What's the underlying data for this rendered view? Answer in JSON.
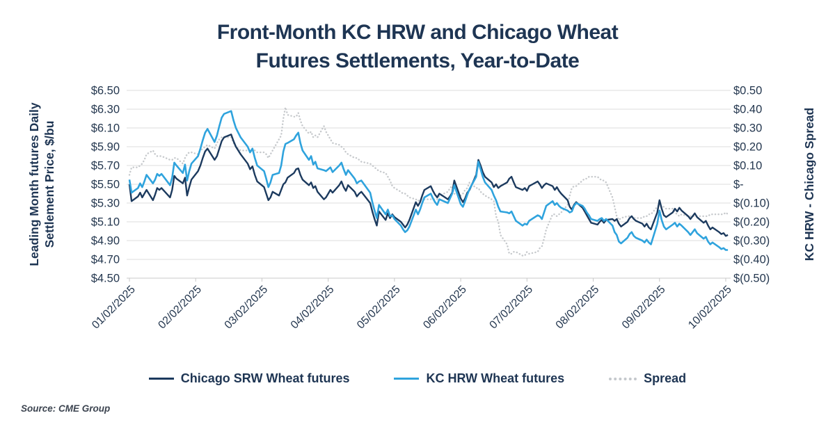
{
  "title": {
    "line1": "Front-Month KC HRW and Chicago Wheat",
    "line2": "Futures Settlements, Year-to-Date"
  },
  "left_axis_title": {
    "line1": "Leading Month futures Daily",
    "line2": "Settlement Price, $/bu"
  },
  "right_axis_title": "KC HRW - Chicago Spread",
  "source": "Source: CME Group",
  "legend": [
    {
      "label": "Chicago SRW Wheat futures",
      "color": "#1c3a5e",
      "style": "solid"
    },
    {
      "label": "KC HRW Wheat futures",
      "color": "#2fa3dd",
      "style": "solid"
    },
    {
      "label": "Spread",
      "color": "#c4c8cc",
      "style": "dotted"
    }
  ],
  "colors": {
    "chicago_srw": "#1c3a5e",
    "kc_hrw": "#2fa3dd",
    "spread": "#c6c9cc",
    "gridline": "#dcdcdc",
    "axis_line": "#c8c8c8",
    "text": "#24374f"
  },
  "chart_data": {
    "type": "line",
    "title": "Front-Month KC HRW and Chicago Wheat Futures Settlements, Year-to-Date",
    "xlabel": "",
    "ylabel_left": "Leading Month futures Daily Settlement Price, $/bu",
    "ylabel_right": "KC HRW - Chicago Spread",
    "grid": true,
    "legend_position": "bottom",
    "ylim_price": [
      4.5,
      6.5
    ],
    "ylim_spread": [
      -0.5,
      0.5
    ],
    "y_ticks_left": [
      "$6.50",
      "$6.30",
      "$6.10",
      "$5.90",
      "$5.70",
      "$5.50",
      "$5.30",
      "$5.10",
      "$4.90",
      "$4.70",
      "$4.50"
    ],
    "y_ticks_right": [
      "$0.50",
      "$0.40",
      "$0.30",
      "$0.20",
      "$0.10",
      "$-",
      "$(0.10)",
      "$(0.20)",
      "$(0.30)",
      "$(0.40)",
      "$(0.50)"
    ],
    "x_ticks": [
      "01/02/2025",
      "02/02/2025",
      "03/02/2025",
      "04/02/2025",
      "05/02/2025",
      "06/02/2025",
      "07/02/2025",
      "08/02/2025",
      "09/02/2025",
      "10/02/2025"
    ],
    "dates": [
      "1/2",
      "1/3",
      "1/6",
      "1/7",
      "1/8",
      "1/9",
      "1/10",
      "1/13",
      "1/14",
      "1/15",
      "1/16",
      "1/17",
      "1/21",
      "1/22",
      "1/23",
      "1/24",
      "1/27",
      "1/28",
      "1/29",
      "1/30",
      "1/31",
      "2/3",
      "2/4",
      "2/5",
      "2/6",
      "2/7",
      "2/10",
      "2/11",
      "2/12",
      "2/13",
      "2/14",
      "2/17",
      "2/18",
      "2/19",
      "2/20",
      "2/21",
      "2/24",
      "2/25",
      "2/26",
      "2/27",
      "2/28",
      "3/3",
      "3/4",
      "3/5",
      "3/6",
      "3/7",
      "3/10",
      "3/11",
      "3/12",
      "3/13",
      "3/14",
      "3/17",
      "3/18",
      "3/19",
      "3/20",
      "3/21",
      "3/24",
      "3/25",
      "3/26",
      "3/27",
      "3/28",
      "3/31",
      "4/1",
      "4/2",
      "4/3",
      "4/4",
      "4/7",
      "4/8",
      "4/9",
      "4/10",
      "4/11",
      "4/14",
      "4/15",
      "4/16",
      "4/17",
      "4/21",
      "4/22",
      "4/23",
      "4/24",
      "4/25",
      "4/28",
      "4/29",
      "4/30",
      "5/1",
      "5/2",
      "5/5",
      "5/6",
      "5/7",
      "5/8",
      "5/9",
      "5/12",
      "5/13",
      "5/14",
      "5/15",
      "5/16",
      "5/19",
      "5/20",
      "5/21",
      "5/22",
      "5/23",
      "5/27",
      "5/28",
      "5/29",
      "5/30",
      "6/2",
      "6/3",
      "6/4",
      "6/5",
      "6/6",
      "6/9",
      "6/10",
      "6/11",
      "6/12",
      "6/13",
      "6/16",
      "6/17",
      "6/18",
      "6/19",
      "6/20",
      "6/23",
      "6/24",
      "6/25",
      "6/26",
      "6/27",
      "6/30",
      "7/1",
      "7/2",
      "7/3",
      "7/7",
      "7/8",
      "7/9",
      "7/10",
      "7/11",
      "7/14",
      "7/15",
      "7/16",
      "7/17",
      "7/18",
      "7/21",
      "7/22",
      "7/23",
      "7/24",
      "7/25",
      "7/28",
      "7/29",
      "7/30",
      "7/31",
      "8/1",
      "8/4",
      "8/5",
      "8/6",
      "8/7",
      "8/8",
      "8/11",
      "8/12",
      "8/13",
      "8/14",
      "8/15",
      "8/18",
      "8/19",
      "8/20",
      "8/21",
      "8/22",
      "8/25",
      "8/26",
      "8/27",
      "8/28",
      "8/29",
      "9/1",
      "9/2",
      "9/3",
      "9/4",
      "9/5",
      "9/8",
      "9/9",
      "9/10",
      "9/11",
      "9/12",
      "9/15",
      "9/16",
      "9/17",
      "9/18",
      "9/19",
      "9/22",
      "9/23",
      "9/24",
      "9/25",
      "9/26",
      "9/29",
      "9/30",
      "10/1",
      "10/2",
      "10/3"
    ],
    "series": [
      {
        "name": "Chicago SRW Wheat futures",
        "axis": "left",
        "values": [
          5.5,
          5.32,
          5.37,
          5.41,
          5.36,
          5.4,
          5.44,
          5.33,
          5.39,
          5.46,
          5.44,
          5.46,
          5.36,
          5.44,
          5.59,
          5.56,
          5.51,
          5.57,
          5.38,
          5.47,
          5.55,
          5.64,
          5.7,
          5.78,
          5.85,
          5.88,
          5.76,
          5.8,
          5.88,
          5.96,
          6.0,
          6.03,
          5.96,
          5.9,
          5.86,
          5.82,
          5.72,
          5.66,
          5.69,
          5.6,
          5.53,
          5.47,
          5.4,
          5.33,
          5.36,
          5.42,
          5.38,
          5.44,
          5.5,
          5.52,
          5.57,
          5.62,
          5.66,
          5.67,
          5.6,
          5.55,
          5.49,
          5.52,
          5.46,
          5.48,
          5.42,
          5.34,
          5.36,
          5.4,
          5.44,
          5.41,
          5.49,
          5.53,
          5.47,
          5.43,
          5.49,
          5.42,
          5.37,
          5.4,
          5.42,
          5.3,
          5.21,
          5.13,
          5.06,
          5.21,
          5.12,
          5.19,
          5.14,
          5.18,
          5.15,
          5.1,
          5.07,
          5.04,
          5.07,
          5.12,
          5.31,
          5.27,
          5.31,
          5.38,
          5.44,
          5.48,
          5.43,
          5.39,
          5.36,
          5.4,
          5.34,
          5.37,
          5.41,
          5.54,
          5.35,
          5.31,
          5.35,
          5.41,
          5.44,
          5.6,
          5.76,
          5.7,
          5.63,
          5.58,
          5.52,
          5.47,
          5.5,
          5.46,
          5.48,
          5.52,
          5.56,
          5.58,
          5.52,
          5.47,
          5.44,
          5.46,
          5.43,
          5.48,
          5.53,
          5.5,
          5.46,
          5.49,
          5.51,
          5.48,
          5.44,
          5.47,
          5.43,
          5.4,
          5.33,
          5.26,
          5.23,
          5.28,
          5.31,
          5.25,
          5.21,
          5.17,
          5.13,
          5.09,
          5.07,
          5.1,
          5.12,
          5.09,
          5.12,
          5.13,
          5.11,
          5.13,
          5.08,
          5.05,
          5.1,
          5.14,
          5.16,
          5.13,
          5.11,
          5.08,
          5.05,
          5.08,
          5.04,
          5.02,
          5.2,
          5.33,
          5.24,
          5.17,
          5.15,
          5.2,
          5.24,
          5.21,
          5.25,
          5.22,
          5.16,
          5.13,
          5.16,
          5.19,
          5.15,
          5.09,
          5.11,
          5.06,
          5.02,
          5.04,
          4.99,
          4.97,
          4.98,
          4.95,
          4.96
        ]
      },
      {
        "name": "KC HRW Wheat futures",
        "axis": "left",
        "values": [
          5.55,
          5.41,
          5.46,
          5.51,
          5.47,
          5.53,
          5.6,
          5.51,
          5.55,
          5.61,
          5.59,
          5.61,
          5.49,
          5.57,
          5.73,
          5.7,
          5.62,
          5.71,
          5.54,
          5.64,
          5.72,
          5.8,
          5.88,
          5.97,
          6.05,
          6.09,
          5.95,
          6.02,
          6.12,
          6.21,
          6.25,
          6.28,
          6.18,
          6.1,
          6.05,
          6.0,
          5.9,
          5.84,
          5.88,
          5.78,
          5.7,
          5.64,
          5.56,
          5.47,
          5.52,
          5.6,
          5.62,
          5.7,
          5.85,
          5.93,
          5.94,
          5.98,
          6.02,
          6.05,
          5.94,
          5.86,
          5.76,
          5.8,
          5.71,
          5.74,
          5.67,
          5.65,
          5.64,
          5.66,
          5.68,
          5.63,
          5.7,
          5.73,
          5.66,
          5.6,
          5.65,
          5.56,
          5.51,
          5.53,
          5.54,
          5.41,
          5.31,
          5.22,
          5.14,
          5.28,
          5.18,
          5.23,
          5.16,
          5.17,
          5.13,
          5.06,
          5.02,
          4.99,
          5.01,
          5.05,
          5.23,
          5.18,
          5.23,
          5.3,
          5.36,
          5.4,
          5.35,
          5.31,
          5.28,
          5.34,
          5.3,
          5.35,
          5.4,
          5.49,
          5.29,
          5.26,
          5.32,
          5.39,
          5.45,
          5.58,
          5.74,
          5.66,
          5.58,
          5.52,
          5.44,
          5.38,
          5.33,
          5.26,
          5.21,
          5.2,
          5.19,
          5.21,
          5.16,
          5.11,
          5.06,
          5.08,
          5.07,
          5.11,
          5.17,
          5.16,
          5.13,
          5.2,
          5.27,
          5.32,
          5.28,
          5.3,
          5.27,
          5.25,
          5.22,
          5.2,
          5.21,
          5.27,
          5.3,
          5.27,
          5.24,
          5.2,
          5.17,
          5.13,
          5.11,
          5.13,
          5.14,
          5.11,
          5.13,
          5.06,
          4.99,
          4.96,
          4.89,
          4.87,
          4.93,
          4.97,
          4.99,
          4.95,
          4.93,
          4.9,
          4.88,
          4.91,
          4.88,
          4.86,
          5.08,
          5.22,
          5.12,
          5.05,
          5.02,
          5.07,
          5.09,
          5.05,
          5.08,
          5.06,
          4.99,
          4.96,
          4.99,
          5.02,
          4.98,
          4.92,
          4.94,
          4.89,
          4.86,
          4.88,
          4.83,
          4.81,
          4.82,
          4.8,
          4.8
        ]
      },
      {
        "name": "Spread",
        "axis": "right",
        "values": [
          0.05,
          0.09,
          0.09,
          0.1,
          0.11,
          0.13,
          0.16,
          0.18,
          0.16,
          0.15,
          0.15,
          0.15,
          0.13,
          0.13,
          0.14,
          0.14,
          0.11,
          0.14,
          0.16,
          0.17,
          0.17,
          0.16,
          0.18,
          0.19,
          0.2,
          0.21,
          0.19,
          0.22,
          0.24,
          0.25,
          0.25,
          0.25,
          0.22,
          0.2,
          0.19,
          0.18,
          0.18,
          0.18,
          0.19,
          0.18,
          0.17,
          0.17,
          0.16,
          0.14,
          0.16,
          0.18,
          0.24,
          0.26,
          0.35,
          0.41,
          0.37,
          0.36,
          0.36,
          0.38,
          0.34,
          0.31,
          0.27,
          0.28,
          0.25,
          0.26,
          0.25,
          0.31,
          0.28,
          0.26,
          0.24,
          0.22,
          0.21,
          0.2,
          0.19,
          0.17,
          0.16,
          0.14,
          0.14,
          0.13,
          0.12,
          0.11,
          0.1,
          0.09,
          0.08,
          0.07,
          0.06,
          0.04,
          0.02,
          -0.01,
          -0.02,
          -0.04,
          -0.05,
          -0.05,
          -0.06,
          -0.07,
          -0.08,
          -0.09,
          -0.08,
          -0.08,
          -0.08,
          -0.08,
          -0.08,
          -0.08,
          -0.08,
          -0.06,
          -0.04,
          -0.02,
          -0.01,
          -0.05,
          -0.06,
          -0.05,
          -0.03,
          -0.02,
          0.01,
          -0.02,
          -0.02,
          -0.04,
          -0.05,
          -0.06,
          -0.08,
          -0.09,
          -0.17,
          -0.2,
          -0.27,
          -0.32,
          -0.37,
          -0.37,
          -0.36,
          -0.36,
          -0.38,
          -0.38,
          -0.36,
          -0.37,
          -0.36,
          -0.34,
          -0.33,
          -0.29,
          -0.24,
          -0.16,
          -0.16,
          -0.17,
          -0.16,
          -0.15,
          -0.11,
          -0.06,
          -0.02,
          -0.01,
          -0.01,
          0.02,
          0.03,
          0.03,
          0.04,
          0.04,
          0.04,
          0.03,
          0.02,
          0.02,
          0.01,
          -0.07,
          -0.12,
          -0.17,
          -0.19,
          -0.18,
          -0.17,
          -0.17,
          -0.17,
          -0.18,
          -0.18,
          -0.18,
          -0.17,
          -0.17,
          -0.16,
          -0.16,
          -0.12,
          -0.11,
          -0.12,
          -0.12,
          -0.13,
          -0.13,
          -0.15,
          -0.16,
          -0.17,
          -0.16,
          -0.17,
          -0.17,
          -0.17,
          -0.17,
          -0.17,
          -0.17,
          -0.17,
          -0.17,
          -0.16,
          -0.16,
          -0.16,
          -0.16,
          -0.16,
          -0.15,
          -0.16
        ]
      }
    ]
  }
}
